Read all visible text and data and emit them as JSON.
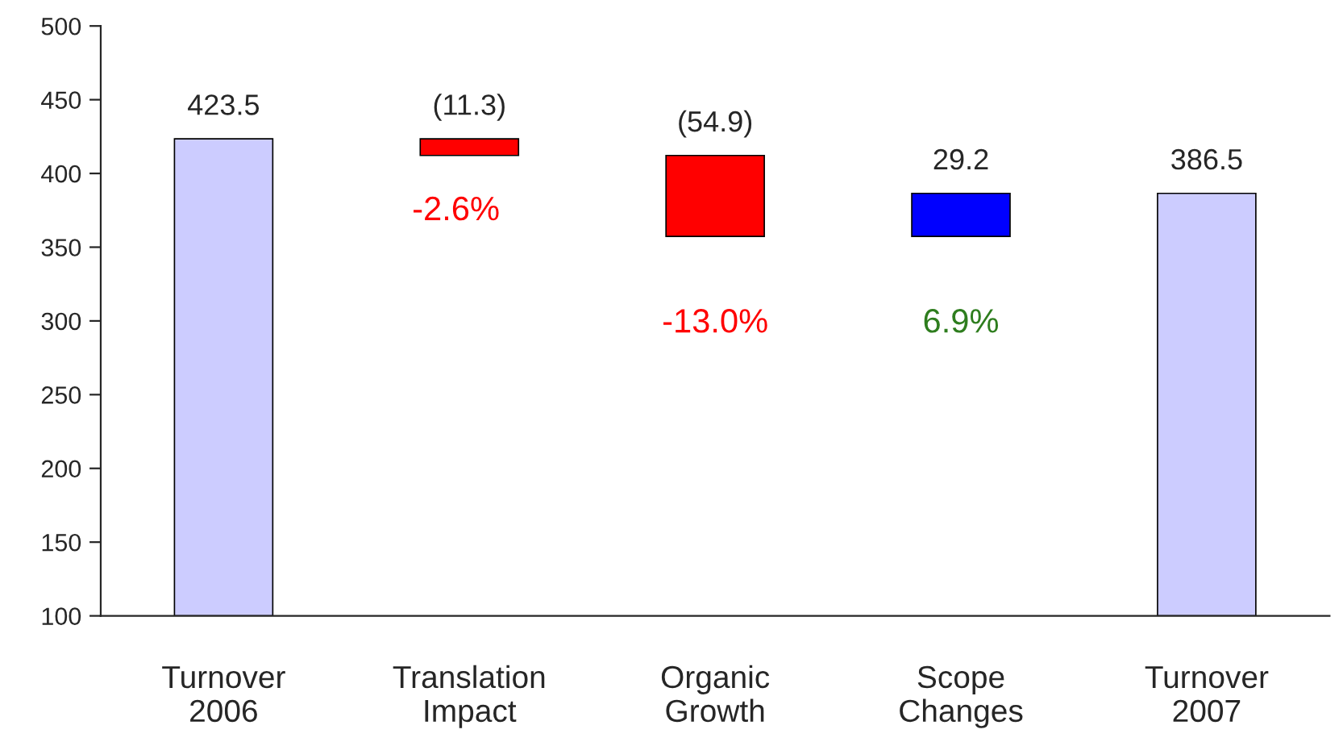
{
  "chart_data": {
    "type": "bar",
    "categories": [
      "Turnover\n2006",
      "Translation\nImpact",
      "Organic\nGrowth",
      "Scope\nChanges",
      "Turnover\n2007"
    ],
    "values": [
      423.5,
      -11.3,
      -54.9,
      29.2,
      386.5
    ],
    "base": [
      null,
      423.5,
      412.2,
      357.3,
      null
    ],
    "colors": [
      "#ccccff",
      "#ff0000",
      "#ff0000",
      "#0000ff",
      "#ccccff"
    ],
    "value_labels": [
      "423.5",
      "(11.3)",
      "(54.9)",
      "29.2",
      "386.5"
    ],
    "annotations": [
      "-2.6%",
      "-13.0%",
      "6.9%"
    ],
    "ylim": [
      100,
      500
    ],
    "yticks": [
      100,
      150,
      200,
      250,
      300,
      350,
      400,
      450,
      500
    ],
    "grid": false,
    "legend": false
  }
}
